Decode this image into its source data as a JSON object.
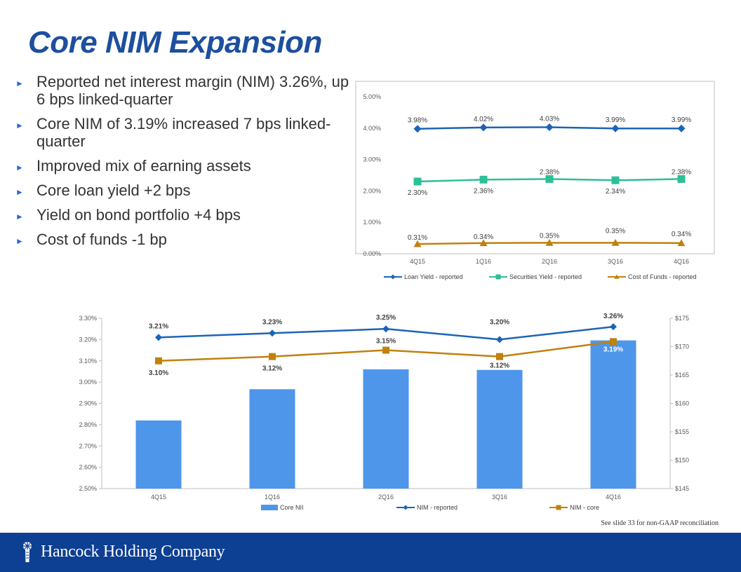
{
  "title": "Core NIM Expansion",
  "bullets": [
    "Reported net interest margin (NIM) 3.26%, up 6 bps linked-quarter",
    "Core NIM of 3.19% increased 7 bps linked-quarter",
    "Improved mix of earning assets",
    "Core loan yield +2 bps",
    "Yield on bond portfolio +4 bps",
    "Cost of funds -1 bp"
  ],
  "footnote": "See slide 33 for non-GAAP reconciliation",
  "company": "Hancock Holding Company",
  "colors": {
    "brand": "#0d3f93",
    "title": "#1d4f9f",
    "blue_line": "#1c64b7",
    "teal": "#2dbf98",
    "orange": "#c0810d",
    "bar": "#4e96ea"
  },
  "chart_data": [
    {
      "type": "line",
      "x": [
        "4Q15",
        "1Q16",
        "2Q16",
        "3Q16",
        "4Q16"
      ],
      "yticks": [
        "0.00%",
        "1.00%",
        "2.00%",
        "3.00%",
        "4.00%",
        "5.00%"
      ],
      "ylim": [
        0,
        5
      ],
      "legend_position": "bottom",
      "series": [
        {
          "name": "Loan Yield - reported",
          "values": [
            3.98,
            4.02,
            4.03,
            3.99,
            3.99
          ],
          "labels": [
            "3.98%",
            "4.02%",
            "4.03%",
            "3.99%",
            "3.99%"
          ],
          "color": "#1c64b7",
          "marker": "diamond"
        },
        {
          "name": "Securities Yield - reported",
          "values": [
            2.3,
            2.36,
            2.38,
            2.34,
            2.38
          ],
          "labels": [
            "2.30%",
            "2.36%",
            "2.38%",
            "2.34%",
            "2.38%"
          ],
          "color": "#2dbf98",
          "marker": "square"
        },
        {
          "name": "Cost of Funds - reported",
          "values": [
            0.31,
            0.34,
            0.35,
            0.35,
            0.34
          ],
          "labels": [
            "0.31%",
            "0.34%",
            "0.35%",
            "0.35%",
            "0.34%"
          ],
          "color": "#c0810d",
          "marker": "triangle"
        }
      ]
    },
    {
      "type": "bar",
      "categories": [
        "4Q15",
        "1Q16",
        "2Q16",
        "3Q16",
        "4Q16"
      ],
      "bars": {
        "name": "Core NII",
        "values": [
          157.0,
          162.5,
          166.0,
          165.9,
          171.1
        ],
        "ylim": [
          145,
          175
        ],
        "ticks": [
          "$145",
          "$150",
          "$155",
          "$160",
          "$165",
          "$170",
          "$175"
        ],
        "color": "#4e96ea"
      },
      "lines": {
        "ylim": [
          2.5,
          3.3
        ],
        "ticks": [
          "2.50%",
          "2.60%",
          "2.70%",
          "2.80%",
          "2.90%",
          "3.00%",
          "3.10%",
          "3.20%",
          "3.30%"
        ],
        "series": [
          {
            "name": "NIM - reported",
            "values": [
              3.21,
              3.23,
              3.25,
              3.2,
              3.26
            ],
            "labels": [
              "3.21%",
              "3.23%",
              "3.25%",
              "3.20%",
              "3.26%"
            ],
            "color": "#1c64b7",
            "marker": "diamond"
          },
          {
            "name": "NIM - core",
            "values": [
              3.1,
              3.12,
              3.15,
              3.12,
              3.19
            ],
            "labels": [
              "3.10%",
              "3.12%",
              "3.15%",
              "3.12%",
              "3.19%"
            ],
            "color": "#c0810d",
            "marker": "square"
          }
        ]
      },
      "legend_position": "bottom"
    }
  ]
}
